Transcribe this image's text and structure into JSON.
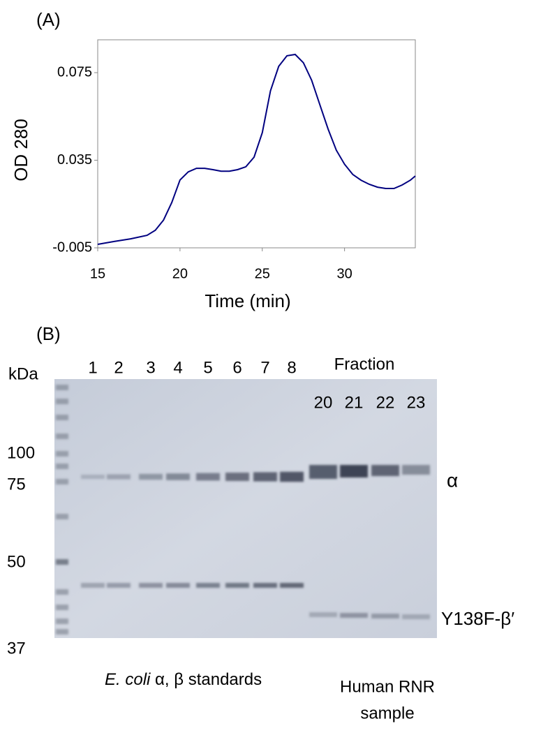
{
  "chart_data": {
    "type": "line",
    "panel_label": "(A)",
    "x_label": "Time (min)",
    "y_label": "OD 280",
    "x": [
      15,
      16,
      17,
      18,
      18.5,
      19,
      19.5,
      20,
      20.5,
      21,
      21.5,
      22,
      22.5,
      23,
      23.5,
      24,
      24.5,
      25,
      25.5,
      26,
      26.5,
      27,
      27.5,
      28,
      28.5,
      29,
      29.5,
      30,
      30.5,
      31,
      31.5,
      32,
      32.5,
      33,
      33.5,
      34,
      34.3
    ],
    "series": [
      {
        "color": "#000080",
        "values": [
          -0.0034,
          -0.0021,
          -0.0009,
          0.0007,
          0.003,
          0.0077,
          0.0157,
          0.026,
          0.0297,
          0.0313,
          0.0313,
          0.0307,
          0.03,
          0.03,
          0.0307,
          0.032,
          0.0364,
          0.0476,
          0.0667,
          0.0779,
          0.0827,
          0.0833,
          0.0795,
          0.0715,
          0.0603,
          0.0492,
          0.0396,
          0.0332,
          0.0285,
          0.0259,
          0.024,
          0.0227,
          0.0221,
          0.0221,
          0.0237,
          0.0259,
          0.0278
        ]
      }
    ],
    "xlim": [
      15,
      34.3
    ],
    "ylim": [
      -0.005,
      0.09
    ],
    "xticks": [
      15,
      20,
      25,
      30
    ],
    "yticks": [
      -0.005,
      0.035,
      0.075
    ]
  },
  "gel": {
    "panel_label": "(B)",
    "unit": "kDa",
    "lanes": [
      "1",
      "2",
      "3",
      "4",
      "5",
      "6",
      "7",
      "8"
    ],
    "fraction_title": "Fraction",
    "fractions": [
      "20",
      "21",
      "22",
      "23"
    ],
    "markers": [
      "100",
      "75",
      "50",
      "37"
    ],
    "band_labels": [
      "α",
      "Y138F-β′"
    ],
    "standards_label": {
      "species": "E. coli",
      "text": " α, β standards"
    },
    "sample_label": [
      "Human RNR",
      "sample"
    ]
  }
}
